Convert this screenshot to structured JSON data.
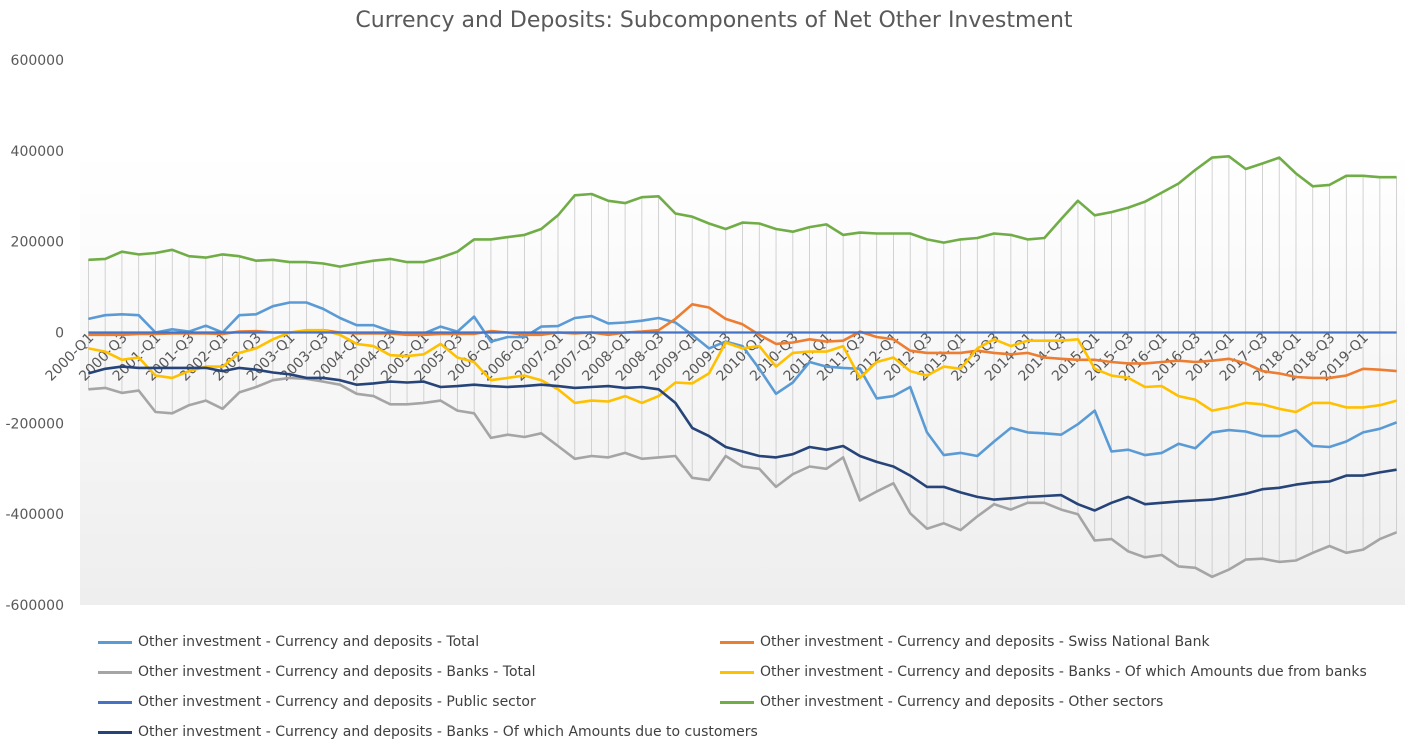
{
  "chart_data": {
    "type": "line",
    "title": "Currency and Deposits: Subcomponents of Net Other Investment",
    "xlabel": "",
    "ylabel": "",
    "ylim": [
      -600000,
      600000
    ],
    "yticks": [
      600000,
      400000,
      200000,
      0,
      -200000,
      -400000,
      -600000
    ],
    "ytick_labels": [
      "600000",
      "400000",
      "200000",
      "0",
      "-200000",
      "-400000",
      "-600000"
    ],
    "xtick_labels": [
      "2000-Q1",
      "2000-Q3",
      "2001-Q1",
      "2001-Q3",
      "2002-Q1",
      "2002-Q3",
      "2003-Q1",
      "2003-Q3",
      "2004-Q1",
      "2004-Q3",
      "2005-Q1",
      "2005-Q3",
      "2006-Q1",
      "2006-Q3",
      "2007-Q1",
      "2007-Q3",
      "2008-Q1",
      "2008-Q3",
      "2009-Q1",
      "2009-Q3",
      "2010-Q1",
      "2010-Q3",
      "2011-Q1",
      "2011-Q3",
      "2012-Q1",
      "2012-Q3",
      "2013-Q1",
      "2013-Q3",
      "2014-Q1",
      "2014-Q3",
      "2015-Q1",
      "2015-Q3",
      "2016-Q1",
      "2016-Q3",
      "2017-Q1",
      "2017-Q3",
      "2018-Q1",
      "2018-Q3",
      "2019-Q1"
    ],
    "grid": false,
    "drop_lines": true,
    "legend_position": "bottom",
    "x": [
      "2000-Q1",
      "2000-Q2",
      "2000-Q3",
      "2000-Q4",
      "2001-Q1",
      "2001-Q2",
      "2001-Q3",
      "2001-Q4",
      "2002-Q1",
      "2002-Q2",
      "2002-Q3",
      "2002-Q4",
      "2003-Q1",
      "2003-Q2",
      "2003-Q3",
      "2003-Q4",
      "2004-Q1",
      "2004-Q2",
      "2004-Q3",
      "2004-Q4",
      "2005-Q1",
      "2005-Q2",
      "2005-Q3",
      "2005-Q4",
      "2006-Q1",
      "2006-Q2",
      "2006-Q3",
      "2006-Q4",
      "2007-Q1",
      "2007-Q2",
      "2007-Q3",
      "2007-Q4",
      "2008-Q1",
      "2008-Q2",
      "2008-Q3",
      "2008-Q4",
      "2009-Q1",
      "2009-Q2",
      "2009-Q3",
      "2009-Q4",
      "2010-Q1",
      "2010-Q2",
      "2010-Q3",
      "2010-Q4",
      "2011-Q1",
      "2011-Q2",
      "2011-Q3",
      "2011-Q4",
      "2012-Q1",
      "2012-Q2",
      "2012-Q3",
      "2012-Q4",
      "2013-Q1",
      "2013-Q2",
      "2013-Q3",
      "2013-Q4",
      "2014-Q1",
      "2014-Q2",
      "2014-Q3",
      "2014-Q4",
      "2015-Q1",
      "2015-Q2",
      "2015-Q3",
      "2015-Q4",
      "2016-Q1",
      "2016-Q2",
      "2016-Q3",
      "2016-Q4",
      "2017-Q1",
      "2017-Q2",
      "2017-Q3",
      "2017-Q4",
      "2018-Q1",
      "2018-Q2",
      "2018-Q3",
      "2018-Q4",
      "2019-Q1",
      "2019-Q2",
      "2019-Q3"
    ],
    "series": [
      {
        "name": "Other investment - Currency and deposits - Total",
        "color": "#5B9BD5",
        "values": [
          30000,
          38000,
          40000,
          38000,
          0,
          7000,
          2000,
          15000,
          0,
          38000,
          40000,
          58000,
          66000,
          66000,
          52000,
          32000,
          16000,
          16000,
          3000,
          -2000,
          -2000,
          13000,
          2000,
          35000,
          -20000,
          -10000,
          -10000,
          13000,
          14000,
          32000,
          36000,
          20000,
          22000,
          26000,
          32000,
          22000,
          -5000,
          -35000,
          -20000,
          -30000,
          -80000,
          -135000,
          -110000,
          -65000,
          -75000,
          -78000,
          -80000,
          -145000,
          -140000,
          -120000,
          -220000,
          -270000,
          -265000,
          -272000,
          -240000,
          -210000,
          -220000,
          -222000,
          -225000,
          -202000,
          -172000,
          -262000,
          -258000,
          -270000,
          -265000,
          -245000,
          -255000,
          -220000,
          -215000,
          -218000,
          -228000,
          -228000,
          -215000,
          -250000,
          -252000,
          -240000,
          -220000,
          -212000,
          -198000
        ]
      },
      {
        "name": "Other investment - Currency and deposits - Swiss National Bank",
        "color": "#ED7D31",
        "values": [
          -5000,
          -5000,
          -5000,
          -3000,
          -3000,
          -2000,
          -2000,
          -2000,
          -3000,
          2000,
          3000,
          0,
          0,
          3000,
          5000,
          0,
          -2000,
          -2000,
          -2000,
          -5000,
          -5000,
          -3000,
          -3000,
          -3000,
          3000,
          0,
          -5000,
          -5000,
          0,
          -2000,
          0,
          -5000,
          0,
          2000,
          5000,
          30000,
          62000,
          55000,
          30000,
          18000,
          -5000,
          -25000,
          -22000,
          -15000,
          -20000,
          -18000,
          2000,
          -10000,
          -15000,
          -40000,
          -45000,
          -45000,
          -45000,
          -40000,
          -45000,
          -48000,
          -45000,
          -55000,
          -58000,
          -60000,
          -60000,
          -65000,
          -68000,
          -68000,
          -65000,
          -62000,
          -65000,
          -62000,
          -58000,
          -68000,
          -85000,
          -90000,
          -98000,
          -100000,
          -100000,
          -95000,
          -80000,
          -82000,
          -85000
        ]
      },
      {
        "name": "Other investment - Currency and deposits - Banks - Total",
        "color": "#A5A5A5",
        "values": [
          -125000,
          -122000,
          -133000,
          -128000,
          -175000,
          -178000,
          -160000,
          -150000,
          -168000,
          -132000,
          -120000,
          -105000,
          -100000,
          -102000,
          -108000,
          -115000,
          -135000,
          -140000,
          -158000,
          -158000,
          -155000,
          -150000,
          -172000,
          -178000,
          -232000,
          -225000,
          -230000,
          -222000,
          -250000,
          -278000,
          -272000,
          -275000,
          -265000,
          -278000,
          -275000,
          -272000,
          -320000,
          -325000,
          -272000,
          -295000,
          -300000,
          -340000,
          -312000,
          -295000,
          -300000,
          -275000,
          -370000,
          -350000,
          -332000,
          -398000,
          -432000,
          -420000,
          -435000,
          -405000,
          -378000,
          -390000,
          -375000,
          -375000,
          -390000,
          -400000,
          -458000,
          -455000,
          -482000,
          -495000,
          -490000,
          -515000,
          -518000,
          -538000,
          -522000,
          -500000,
          -498000,
          -505000,
          -502000,
          -485000,
          -470000,
          -485000,
          -478000,
          -455000,
          -440000
        ]
      },
      {
        "name": "Other investment - Currency and deposits - Banks - Of which Amounts due from banks",
        "color": "#FFC000",
        "values": [
          -35000,
          -42000,
          -60000,
          -55000,
          -95000,
          -100000,
          -85000,
          -75000,
          -75000,
          -45000,
          -35000,
          -15000,
          0,
          5000,
          5000,
          -5000,
          -25000,
          -30000,
          -50000,
          -52000,
          -48000,
          -25000,
          -55000,
          -65000,
          -105000,
          -100000,
          -95000,
          -105000,
          -125000,
          -155000,
          -150000,
          -152000,
          -140000,
          -155000,
          -140000,
          -110000,
          -112000,
          -90000,
          -22000,
          -35000,
          -30000,
          -75000,
          -45000,
          -42000,
          -42000,
          -30000,
          -100000,
          -65000,
          -55000,
          -85000,
          -95000,
          -75000,
          -80000,
          -35000,
          -15000,
          -30000,
          -18000,
          -18000,
          -18000,
          -15000,
          -80000,
          -95000,
          -100000,
          -120000,
          -118000,
          -140000,
          -148000,
          -172000,
          -165000,
          -155000,
          -158000,
          -168000,
          -175000,
          -155000,
          -155000,
          -165000,
          -165000,
          -160000,
          -150000
        ]
      },
      {
        "name": "Other investment - Currency and deposits - Public sector",
        "color": "#4472C4",
        "values": [
          0,
          0,
          0,
          0,
          0,
          0,
          0,
          0,
          0,
          0,
          0,
          0,
          0,
          0,
          0,
          0,
          0,
          0,
          0,
          0,
          0,
          0,
          0,
          0,
          0,
          0,
          0,
          0,
          0,
          0,
          0,
          0,
          0,
          0,
          0,
          0,
          0,
          0,
          0,
          0,
          0,
          0,
          0,
          0,
          0,
          0,
          0,
          0,
          0,
          0,
          0,
          0,
          0,
          0,
          0,
          0,
          0,
          0,
          0,
          0,
          0,
          0,
          0,
          0,
          0,
          0,
          0,
          0,
          0,
          0,
          0,
          0,
          0,
          0,
          0,
          0,
          0,
          0,
          0
        ]
      },
      {
        "name": "Other investment - Currency and deposits - Other sectors",
        "color": "#70AD47",
        "values": [
          160000,
          162000,
          178000,
          172000,
          175000,
          182000,
          168000,
          165000,
          172000,
          168000,
          158000,
          160000,
          155000,
          155000,
          152000,
          145000,
          152000,
          158000,
          162000,
          155000,
          155000,
          165000,
          178000,
          205000,
          205000,
          210000,
          215000,
          228000,
          258000,
          302000,
          305000,
          290000,
          285000,
          298000,
          300000,
          262000,
          255000,
          240000,
          228000,
          242000,
          240000,
          228000,
          222000,
          232000,
          238000,
          215000,
          220000,
          218000,
          218000,
          218000,
          205000,
          198000,
          205000,
          208000,
          218000,
          215000,
          205000,
          208000,
          250000,
          290000,
          258000,
          265000,
          275000,
          288000,
          308000,
          328000,
          358000,
          385000,
          388000,
          360000,
          372000,
          385000,
          350000,
          322000,
          325000,
          345000,
          345000,
          342000,
          342000
        ]
      },
      {
        "name": "Other investment - Currency and deposits - Banks - Of which Amounts due to customers",
        "color": "#264478",
        "values": [
          -90000,
          -80000,
          -75000,
          -78000,
          -78000,
          -78000,
          -78000,
          -78000,
          -85000,
          -78000,
          -82000,
          -88000,
          -92000,
          -100000,
          -100000,
          -105000,
          -115000,
          -112000,
          -108000,
          -110000,
          -108000,
          -120000,
          -118000,
          -115000,
          -118000,
          -120000,
          -118000,
          -115000,
          -118000,
          -122000,
          -120000,
          -118000,
          -122000,
          -120000,
          -125000,
          -155000,
          -210000,
          -228000,
          -252000,
          -262000,
          -272000,
          -275000,
          -268000,
          -252000,
          -258000,
          -250000,
          -272000,
          -285000,
          -295000,
          -315000,
          -340000,
          -340000,
          -352000,
          -362000,
          -368000,
          -365000,
          -362000,
          -360000,
          -358000,
          -378000,
          -392000,
          -375000,
          -362000,
          -378000,
          -375000,
          -372000,
          -370000,
          -368000,
          -362000,
          -355000,
          -345000,
          -342000,
          -335000,
          -330000,
          -328000,
          -315000,
          -315000,
          -308000,
          -302000
        ]
      }
    ]
  }
}
